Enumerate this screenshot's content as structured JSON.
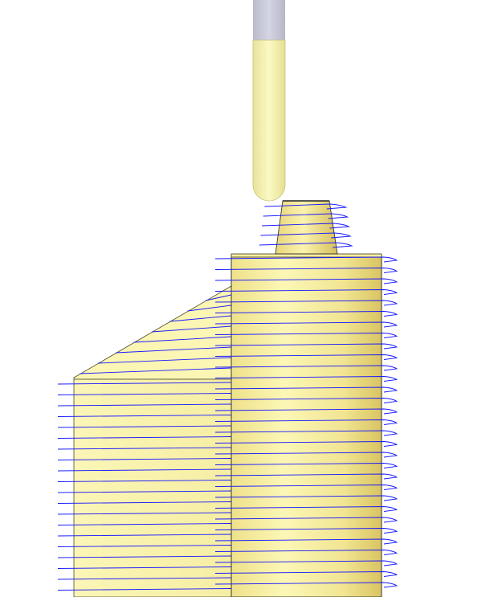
{
  "scene": {
    "type": "cnc-toolpath-3d-view",
    "colors": {
      "background": "#ffffff",
      "tool_shank": "#c4c5d6",
      "tool_body": "#f5f2a8",
      "part_light": "#fbf6b0",
      "part_mid": "#f2e58e",
      "part_dark": "#d8c25e",
      "part_edge": "#3a3a2a",
      "toolpath": "#1a1aff"
    },
    "icons": {
      "tool": "ball-end-mill-icon",
      "toolpath": "waterline-toolpath-icon"
    }
  }
}
